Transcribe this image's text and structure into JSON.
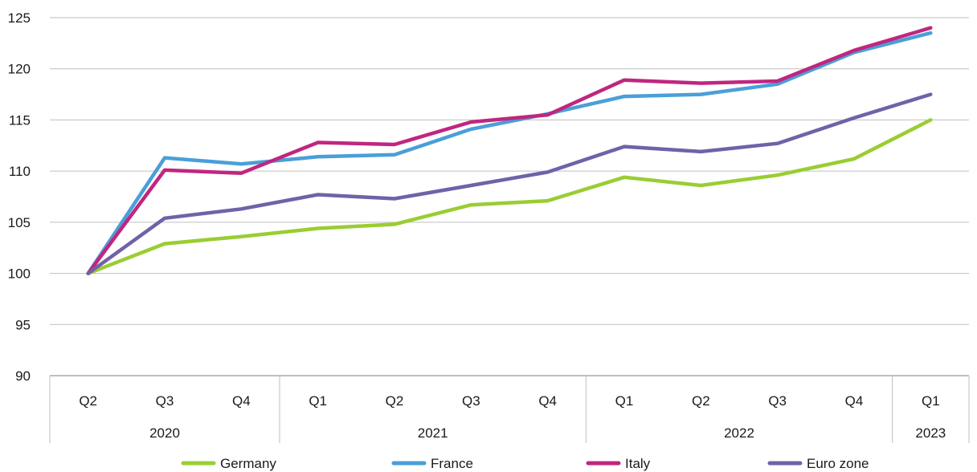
{
  "chart_data": {
    "type": "line",
    "x": [
      "Q2",
      "Q3",
      "Q4",
      "Q1",
      "Q2",
      "Q3",
      "Q4",
      "Q1",
      "Q2",
      "Q3",
      "Q4",
      "Q1"
    ],
    "year_groups": [
      {
        "label": "2020",
        "count": 3
      },
      {
        "label": "2021",
        "count": 4
      },
      {
        "label": "2022",
        "count": 4
      },
      {
        "label": "2023",
        "count": 1
      }
    ],
    "ylim": [
      90,
      125
    ],
    "yticks": [
      90,
      95,
      100,
      105,
      110,
      115,
      120,
      125
    ],
    "grid": true,
    "legend_position": "bottom",
    "series": [
      {
        "name": "Germany",
        "color": "#9ACD32",
        "values": [
          100,
          102.9,
          103.6,
          104.4,
          104.8,
          106.7,
          107.1,
          109.4,
          108.6,
          109.6,
          111.2,
          115.0
        ]
      },
      {
        "name": "France",
        "color": "#4A9FD8",
        "values": [
          100,
          111.3,
          110.7,
          111.4,
          111.6,
          114.1,
          115.6,
          117.3,
          117.5,
          118.5,
          121.6,
          123.5
        ]
      },
      {
        "name": "Italy",
        "color": "#C0267F",
        "values": [
          100,
          110.1,
          109.8,
          112.8,
          112.6,
          114.8,
          115.5,
          118.9,
          118.6,
          118.8,
          121.8,
          124.0
        ]
      },
      {
        "name": "Euro zone",
        "color": "#7062A8",
        "values": [
          100,
          105.4,
          106.3,
          107.7,
          107.3,
          108.6,
          109.9,
          112.4,
          111.9,
          112.7,
          115.2,
          117.5
        ]
      }
    ]
  }
}
